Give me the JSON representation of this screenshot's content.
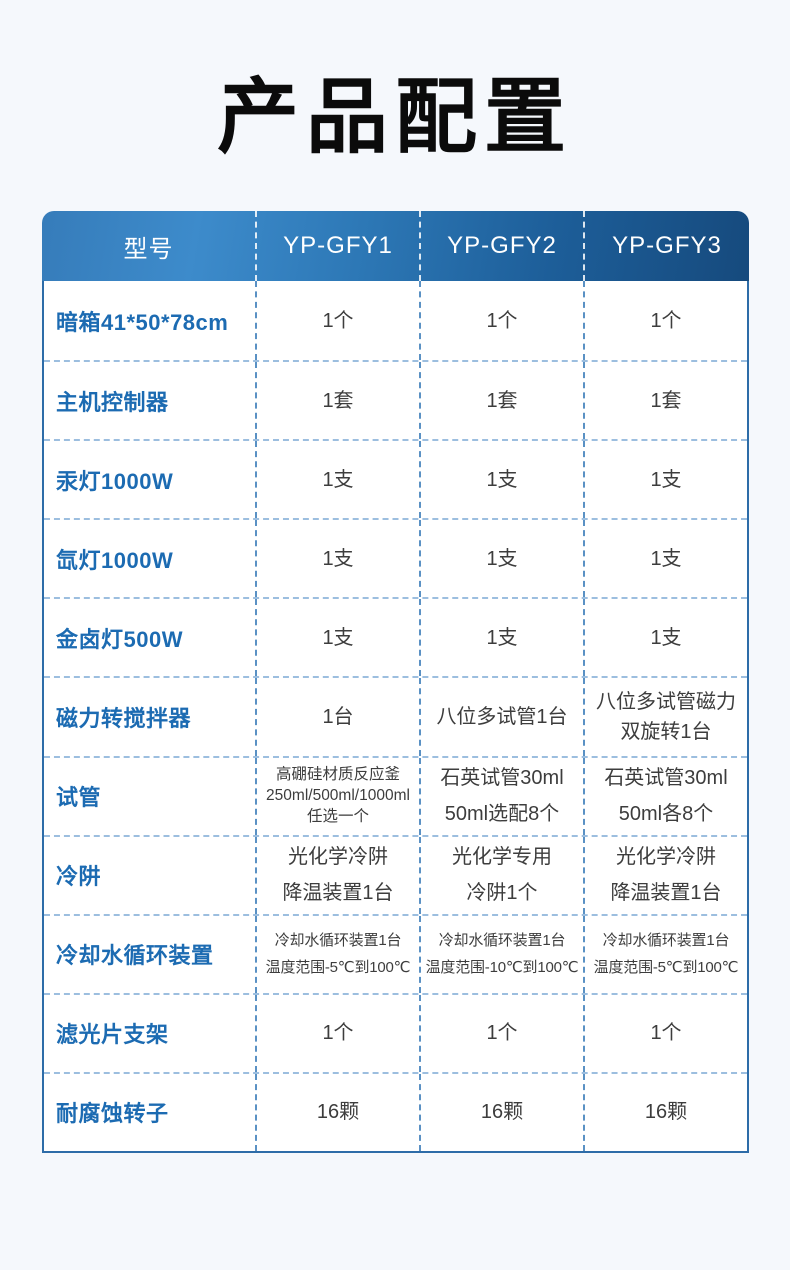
{
  "page": {
    "title": "产品配置",
    "background_color": "#f5f8fc"
  },
  "table": {
    "header": {
      "columns": [
        "型号",
        "YP-GFY1",
        "YP-GFY2",
        "YP-GFY3"
      ],
      "gradient_colors": [
        "#3d8bcb",
        "#164a7d"
      ],
      "text_color": "#ffffff"
    },
    "colors": {
      "label_text": "#1c6bb2",
      "value_text": "#3d3d3d",
      "outer_border": "#2d6ca8",
      "dashed_divider": "#5a91c4"
    },
    "rows": [
      {
        "label": "暗箱41*50*78cm",
        "values": [
          "1个",
          "1个",
          "1个"
        ]
      },
      {
        "label": "主机控制器",
        "values": [
          "1套",
          "1套",
          "1套"
        ]
      },
      {
        "label": "汞灯1000W",
        "values": [
          "1支",
          "1支",
          "1支"
        ]
      },
      {
        "label": "氙灯1000W",
        "values": [
          "1支",
          "1支",
          "1支"
        ]
      },
      {
        "label": "金卤灯500W",
        "values": [
          "1支",
          "1支",
          "1支"
        ]
      },
      {
        "label": "磁力转搅拌器",
        "values": [
          "1台",
          "八位多试管1台",
          "八位多试管磁力\n双旋转1台"
        ]
      },
      {
        "label": "试管",
        "values": [
          "高硼硅材质反应釜\n250ml/500ml/1000ml\n任选一个",
          "石英试管30ml\n50ml选配8个",
          "石英试管30ml\n50ml各8个"
        ]
      },
      {
        "label": "冷阱",
        "values": [
          "光化学冷阱\n降温装置1台",
          "光化学专用\n冷阱1个",
          "光化学冷阱\n降温装置1台"
        ]
      },
      {
        "label": "冷却水循环装置",
        "values": [
          "冷却水循环装置1台\n温度范围-5℃到100℃",
          "冷却水循环装置1台\n温度范围-10℃到100℃",
          "冷却水循环装置1台\n温度范围-5℃到100℃"
        ]
      },
      {
        "label": "滤光片支架",
        "values": [
          "1个",
          "1个",
          "1个"
        ]
      },
      {
        "label": "耐腐蚀转子",
        "values": [
          "16颗",
          "16颗",
          "16颗"
        ]
      }
    ]
  }
}
